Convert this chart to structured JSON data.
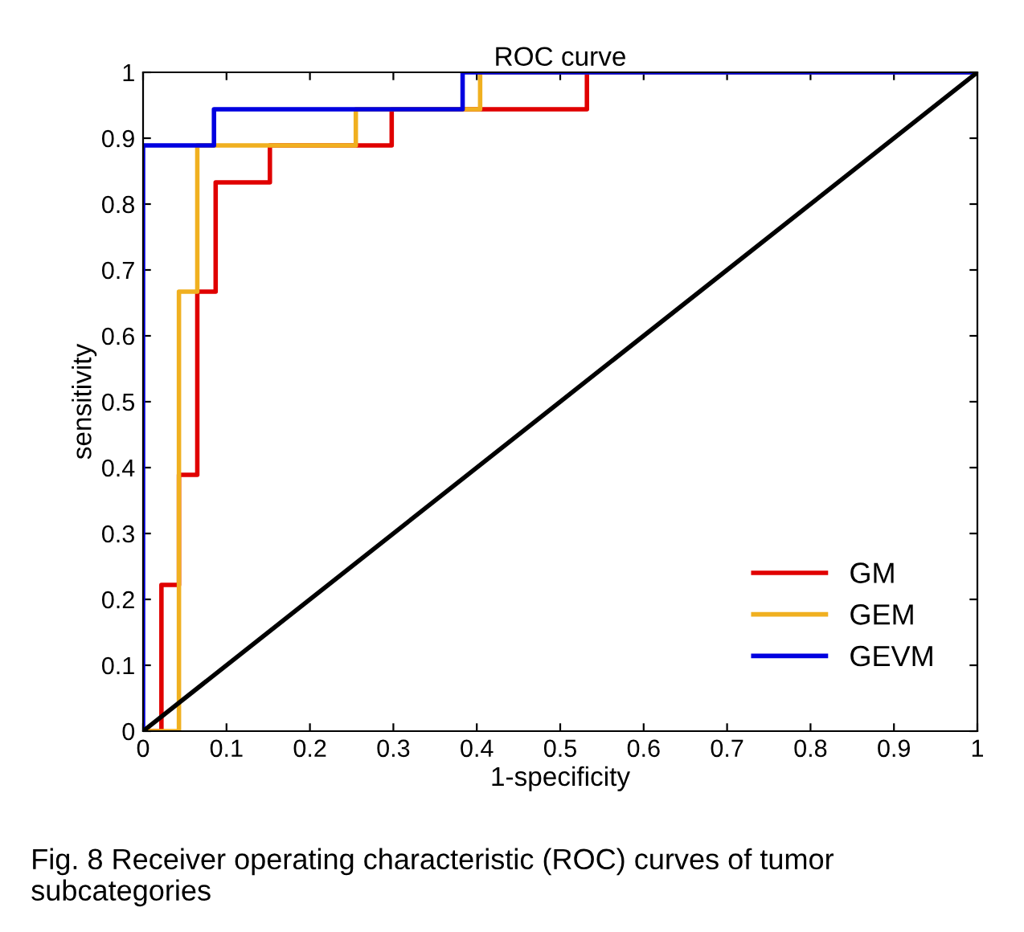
{
  "chart_data": {
    "type": "line",
    "title": "ROC curve",
    "xlabel": "1-specificity",
    "ylabel": "sensitivity",
    "xlim": [
      0,
      1
    ],
    "ylim": [
      0,
      1
    ],
    "xticks": [
      0,
      0.1,
      0.2,
      0.3,
      0.4,
      0.5,
      0.6,
      0.7,
      0.8,
      0.9,
      1
    ],
    "yticks": [
      0,
      0.1,
      0.2,
      0.3,
      0.4,
      0.5,
      0.6,
      0.7,
      0.8,
      0.9,
      1
    ],
    "grid": false,
    "legend": "bottom right",
    "marker": "none",
    "line_style": "solid",
    "series": [
      {
        "name": "GM",
        "color": "#e00000",
        "x": [
          0,
          0.022,
          0.022,
          0.043,
          0.043,
          0.065,
          0.065,
          0.087,
          0.087,
          0.152,
          0.152,
          0.298,
          0.298,
          0.532,
          0.532
        ],
        "values": [
          0,
          0,
          0.222,
          0.222,
          0.389,
          0.389,
          0.667,
          0.667,
          0.833,
          0.833,
          0.889,
          0.889,
          0.944,
          0.944,
          1
        ]
      },
      {
        "name": "GEM",
        "color": "#f0b020",
        "x": [
          0,
          0.043,
          0.043,
          0.065,
          0.065,
          0.255,
          0.255,
          0.404,
          0.404,
          1
        ],
        "values": [
          0,
          0,
          0.667,
          0.667,
          0.889,
          0.889,
          0.944,
          0.944,
          1,
          1
        ]
      },
      {
        "name": "GEVM",
        "color": "#0000e0",
        "x": [
          0,
          0,
          0.085,
          0.085,
          0.383,
          0.383,
          1
        ],
        "values": [
          0,
          0.889,
          0.889,
          0.944,
          0.944,
          1,
          1
        ]
      },
      {
        "color": "#000000",
        "x": [
          0,
          1
        ],
        "values": [
          0,
          1
        ]
      }
    ],
    "annotations": [
      "Fig. 8 Receiver operating characteristic (ROC) curves of tumor subcategories"
    ]
  }
}
